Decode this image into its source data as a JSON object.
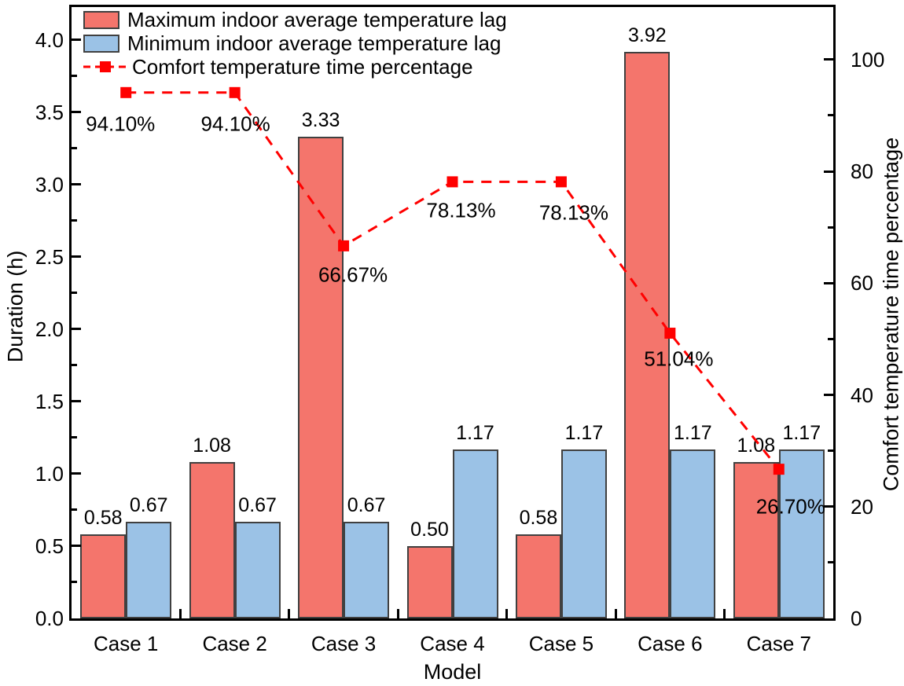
{
  "colors": {
    "max_bar": "#f4756c",
    "min_bar": "#9bc2e6",
    "bar_border": "#404040",
    "line": "#ff0000",
    "axis": "#000000",
    "text": "#000000"
  },
  "chart_data": {
    "type": "bar",
    "combo": "grouped bars on left axis + dashed line with square markers on right axis",
    "categories": [
      "Case 1",
      "Case 2",
      "Case 3",
      "Case 4",
      "Case 5",
      "Case 6",
      "Case 7"
    ],
    "xlabel": "Model",
    "ylabel_left": "Duration (h)",
    "ylabel_right": "Comfort temperature time percentage",
    "ylim_left": [
      0,
      4.227
    ],
    "ylim_right": [
      0,
      109.4
    ],
    "yticks_left": [
      "0.0",
      "0.5",
      "1.0",
      "1.5",
      "2.0",
      "2.5",
      "3.0",
      "3.5",
      "4.0"
    ],
    "yticks_right": [
      "0",
      "20",
      "40",
      "60",
      "80",
      "100"
    ],
    "grid": false,
    "legend_position": "top-left-inside",
    "series": [
      {
        "name": "Maximum indoor average temperature lag",
        "type": "bar",
        "axis": "left",
        "values": [
          0.58,
          1.08,
          3.33,
          0.5,
          0.58,
          3.92,
          1.08
        ],
        "labels": [
          "0.58",
          "1.08",
          "3.33",
          "0.50",
          "0.58",
          "3.92",
          "1.08"
        ]
      },
      {
        "name": "Minimum indoor average temperature lag",
        "type": "bar",
        "axis": "left",
        "values": [
          0.67,
          0.67,
          0.67,
          1.17,
          1.17,
          1.17,
          1.17
        ],
        "labels": [
          "0.67",
          "0.67",
          "0.67",
          "1.17",
          "1.17",
          "1.17",
          "1.17"
        ]
      },
      {
        "name": "Comfort temperature time percentage",
        "type": "line",
        "axis": "right",
        "line_style": "dashed",
        "marker": "square",
        "values": [
          94.1,
          94.1,
          66.67,
          78.13,
          78.13,
          51.04,
          26.7
        ],
        "labels": [
          "94.10%",
          "94.10%",
          "66.67%",
          "78.13%",
          "78.13%",
          "51.04%",
          "26.70%"
        ]
      }
    ]
  }
}
